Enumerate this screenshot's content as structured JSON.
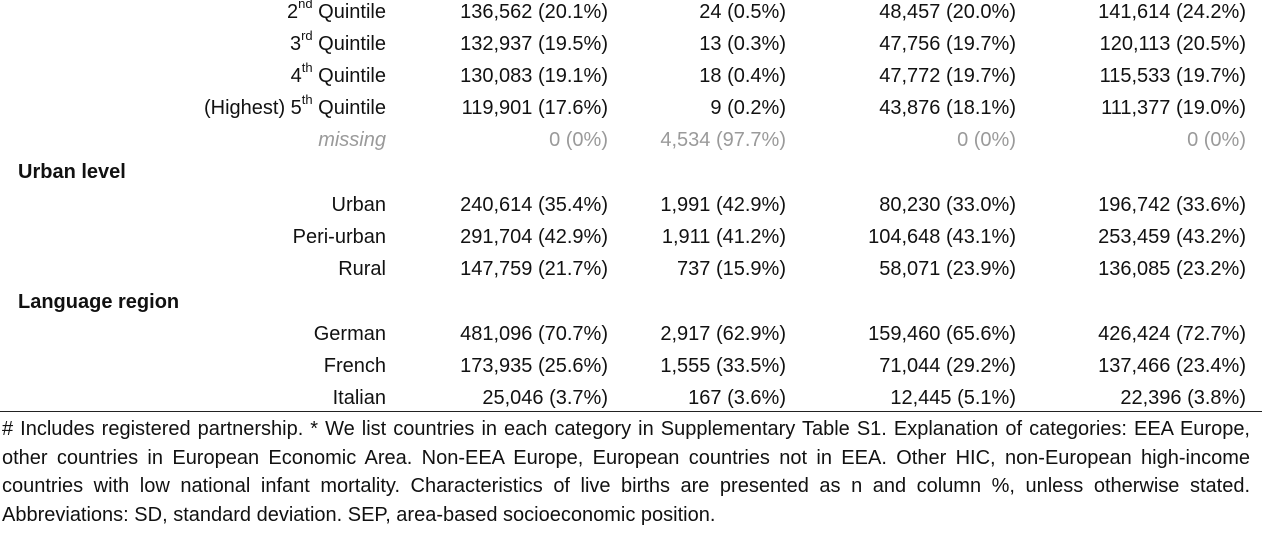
{
  "quintile_rows": [
    {
      "label_prefix": "2",
      "label_sup": "nd",
      "label_suffix": " Quintile",
      "values": [
        "136,562 (20.1%)",
        "24 (0.5%)",
        "48,457 (20.0%)",
        "141,614 (24.2%)"
      ]
    },
    {
      "label_prefix": "3",
      "label_sup": "rd",
      "label_suffix": " Quintile",
      "values": [
        "132,937 (19.5%)",
        "13 (0.3%)",
        "47,756 (19.7%)",
        "120,113 (20.5%)"
      ]
    },
    {
      "label_prefix": "4",
      "label_sup": "th",
      "label_suffix": " Quintile",
      "values": [
        "130,083 (19.1%)",
        "18 (0.4%)",
        "47,772 (19.7%)",
        "115,533 (19.7%)"
      ]
    },
    {
      "label_prefix": "(Highest) 5",
      "label_sup": "th",
      "label_suffix": " Quintile",
      "values": [
        "119,901 (17.6%)",
        "9 (0.2%)",
        "43,876 (18.1%)",
        "111,377 (19.0%)"
      ]
    }
  ],
  "missing_row": {
    "label": "missing",
    "values": [
      "0 (0%)",
      "4,534 (97.7%)",
      "0 (0%)",
      "0 (0%)"
    ]
  },
  "urban": {
    "title": "Urban level",
    "rows": [
      {
        "label": "Urban",
        "values": [
          "240,614 (35.4%)",
          "1,991 (42.9%)",
          "80,230 (33.0%)",
          "196,742 (33.6%)"
        ]
      },
      {
        "label": "Peri-urban",
        "values": [
          "291,704 (42.9%)",
          "1,911 (41.2%)",
          "104,648 (43.1%)",
          "253,459 (43.2%)"
        ]
      },
      {
        "label": "Rural",
        "values": [
          "147,759 (21.7%)",
          "737 (15.9%)",
          "58,071 (23.9%)",
          "136,085 (23.2%)"
        ]
      }
    ]
  },
  "language": {
    "title": "Language region",
    "rows": [
      {
        "label": "German",
        "values": [
          "481,096 (70.7%)",
          "2,917 (62.9%)",
          "159,460 (65.6%)",
          "426,424 (72.7%)"
        ]
      },
      {
        "label": "French",
        "values": [
          "173,935 (25.6%)",
          "1,555 (33.5%)",
          "71,044 (29.2%)",
          "137,466 (23.4%)"
        ]
      },
      {
        "label": "Italian",
        "values": [
          "25,046 (3.7%)",
          "167 (3.6%)",
          "12,445 (5.1%)",
          "22,396 (3.8%)"
        ]
      }
    ]
  },
  "footnote": "# Includes registered partnership. * We list countries in each category in Supplementary Table S1. Explanation of categories: EEA Europe, other countries in European Economic Area. Non-EEA Europe, European countries not in EEA. Other HIC, non-European high-income countries with low national infant mortality. Characteristics of live births are presented as n and column %, unless otherwise stated. Abbreviations: SD, standard deviation. SEP, area-based socioeconomic position."
}
